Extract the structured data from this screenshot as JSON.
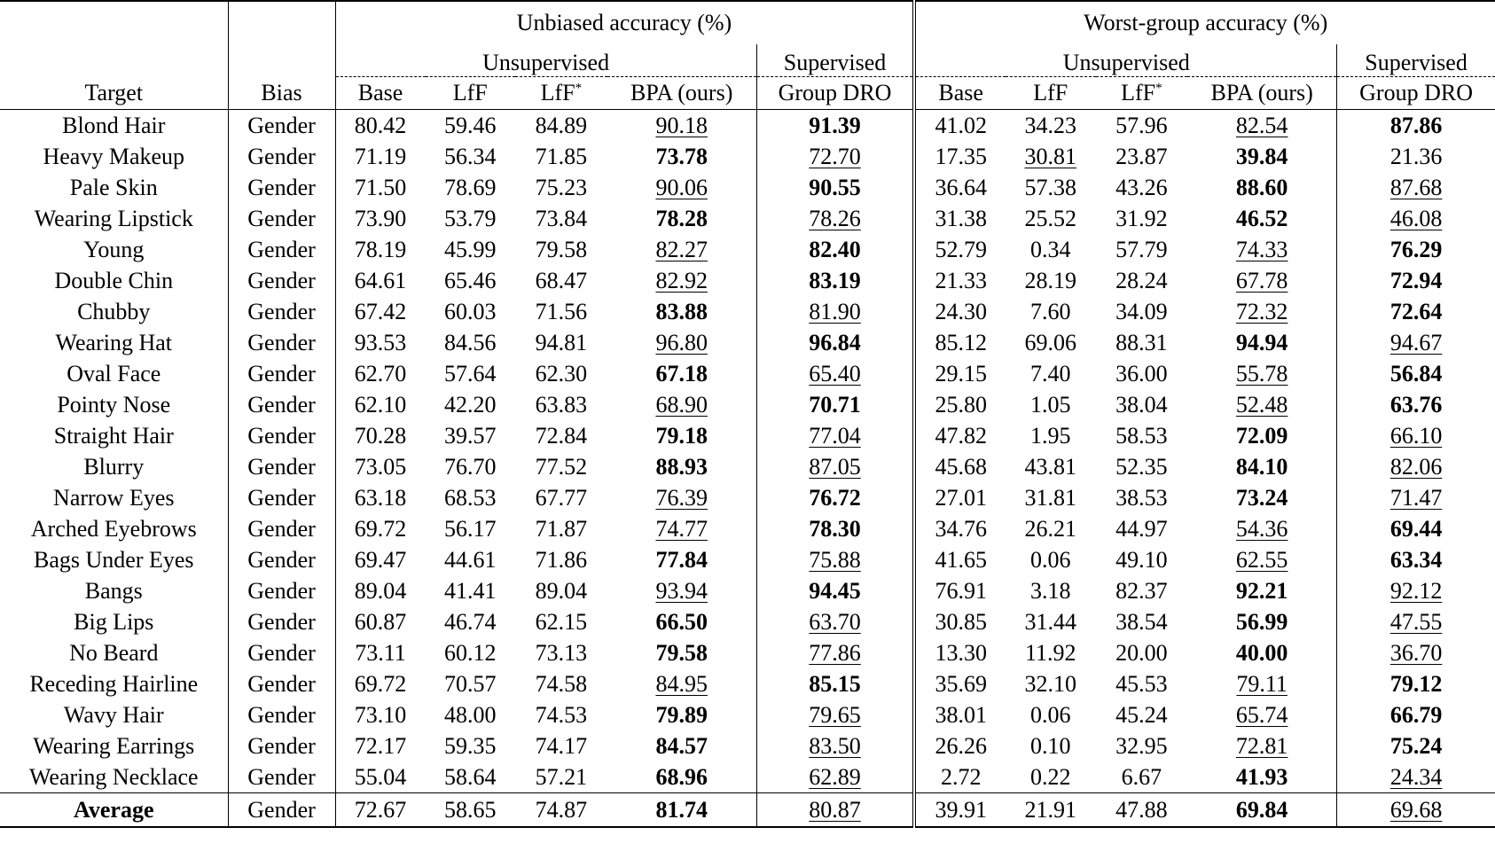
{
  "header": {
    "group_unbiased": "Unbiased accuracy (%)",
    "group_worst": "Worst-group accuracy (%)",
    "unsupervised": "Unsupervised",
    "supervised": "Supervised",
    "col_target": "Target",
    "col_bias": "Bias",
    "col_base": "Base",
    "col_lff": "LfF",
    "col_lffstar": "LfF*",
    "col_bpa": "BPA (ours)",
    "col_gdro": "Group DRO"
  },
  "rows": [
    {
      "target": "Blond Hair",
      "bias": "Gender",
      "v": [
        "80.42",
        "59.46",
        "84.89",
        "90.18",
        "91.39",
        "41.02",
        "34.23",
        "57.96",
        "82.54",
        "87.86"
      ],
      "fmt": [
        "",
        "",
        "",
        "u",
        "b",
        "",
        "",
        "",
        "u",
        "b"
      ]
    },
    {
      "target": "Heavy Makeup",
      "bias": "Gender",
      "v": [
        "71.19",
        "56.34",
        "71.85",
        "73.78",
        "72.70",
        "17.35",
        "30.81",
        "23.87",
        "39.84",
        "21.36"
      ],
      "fmt": [
        "",
        "",
        "",
        "b",
        "u",
        "",
        "u",
        "",
        "b",
        ""
      ]
    },
    {
      "target": "Pale Skin",
      "bias": "Gender",
      "v": [
        "71.50",
        "78.69",
        "75.23",
        "90.06",
        "90.55",
        "36.64",
        "57.38",
        "43.26",
        "88.60",
        "87.68"
      ],
      "fmt": [
        "",
        "",
        "",
        "u",
        "b",
        "",
        "",
        "",
        "b",
        "u"
      ]
    },
    {
      "target": "Wearing Lipstick",
      "bias": "Gender",
      "v": [
        "73.90",
        "53.79",
        "73.84",
        "78.28",
        "78.26",
        "31.38",
        "25.52",
        "31.92",
        "46.52",
        "46.08"
      ],
      "fmt": [
        "",
        "",
        "",
        "b",
        "u",
        "",
        "",
        "",
        "b",
        "u"
      ]
    },
    {
      "target": "Young",
      "bias": "Gender",
      "v": [
        "78.19",
        "45.99",
        "79.58",
        "82.27",
        "82.40",
        "52.79",
        "0.34",
        "57.79",
        "74.33",
        "76.29"
      ],
      "fmt": [
        "",
        "",
        "",
        "u",
        "b",
        "",
        "",
        "",
        "u",
        "b"
      ]
    },
    {
      "target": "Double Chin",
      "bias": "Gender",
      "v": [
        "64.61",
        "65.46",
        "68.47",
        "82.92",
        "83.19",
        "21.33",
        "28.19",
        "28.24",
        "67.78",
        "72.94"
      ],
      "fmt": [
        "",
        "",
        "",
        "u",
        "b",
        "",
        "",
        "",
        "u",
        "b"
      ]
    },
    {
      "target": "Chubby",
      "bias": "Gender",
      "v": [
        "67.42",
        "60.03",
        "71.56",
        "83.88",
        "81.90",
        "24.30",
        "7.60",
        "34.09",
        "72.32",
        "72.64"
      ],
      "fmt": [
        "",
        "",
        "",
        "b",
        "u",
        "",
        "",
        "",
        "u",
        "b"
      ]
    },
    {
      "target": "Wearing Hat",
      "bias": "Gender",
      "v": [
        "93.53",
        "84.56",
        "94.81",
        "96.80",
        "96.84",
        "85.12",
        "69.06",
        "88.31",
        "94.94",
        "94.67"
      ],
      "fmt": [
        "",
        "",
        "",
        "u",
        "b",
        "",
        "",
        "",
        "b",
        "u"
      ]
    },
    {
      "target": "Oval Face",
      "bias": "Gender",
      "v": [
        "62.70",
        "57.64",
        "62.30",
        "67.18",
        "65.40",
        "29.15",
        "7.40",
        "36.00",
        "55.78",
        "56.84"
      ],
      "fmt": [
        "",
        "",
        "",
        "b",
        "u",
        "",
        "",
        "",
        "u",
        "b"
      ]
    },
    {
      "target": "Pointy Nose",
      "bias": "Gender",
      "v": [
        "62.10",
        "42.20",
        "63.83",
        "68.90",
        "70.71",
        "25.80",
        "1.05",
        "38.04",
        "52.48",
        "63.76"
      ],
      "fmt": [
        "",
        "",
        "",
        "u",
        "b",
        "",
        "",
        "",
        "u",
        "b"
      ]
    },
    {
      "target": "Straight Hair",
      "bias": "Gender",
      "v": [
        "70.28",
        "39.57",
        "72.84",
        "79.18",
        "77.04",
        "47.82",
        "1.95",
        "58.53",
        "72.09",
        "66.10"
      ],
      "fmt": [
        "",
        "",
        "",
        "b",
        "u",
        "",
        "",
        "",
        "b",
        "u"
      ]
    },
    {
      "target": "Blurry",
      "bias": "Gender",
      "v": [
        "73.05",
        "76.70",
        "77.52",
        "88.93",
        "87.05",
        "45.68",
        "43.81",
        "52.35",
        "84.10",
        "82.06"
      ],
      "fmt": [
        "",
        "",
        "",
        "b",
        "u",
        "",
        "",
        "",
        "b",
        "u"
      ]
    },
    {
      "target": "Narrow Eyes",
      "bias": "Gender",
      "v": [
        "63.18",
        "68.53",
        "67.77",
        "76.39",
        "76.72",
        "27.01",
        "31.81",
        "38.53",
        "73.24",
        "71.47"
      ],
      "fmt": [
        "",
        "",
        "",
        "u",
        "b",
        "",
        "",
        "",
        "b",
        "u"
      ]
    },
    {
      "target": "Arched Eyebrows",
      "bias": "Gender",
      "v": [
        "69.72",
        "56.17",
        "71.87",
        "74.77",
        "78.30",
        "34.76",
        "26.21",
        "44.97",
        "54.36",
        "69.44"
      ],
      "fmt": [
        "",
        "",
        "",
        "u",
        "b",
        "",
        "",
        "",
        "u",
        "b"
      ]
    },
    {
      "target": "Bags Under Eyes",
      "bias": "Gender",
      "v": [
        "69.47",
        "44.61",
        "71.86",
        "77.84",
        "75.88",
        "41.65",
        "0.06",
        "49.10",
        "62.55",
        "63.34"
      ],
      "fmt": [
        "",
        "",
        "",
        "b",
        "u",
        "",
        "",
        "",
        "u",
        "b"
      ]
    },
    {
      "target": "Bangs",
      "bias": "Gender",
      "v": [
        "89.04",
        "41.41",
        "89.04",
        "93.94",
        "94.45",
        "76.91",
        "3.18",
        "82.37",
        "92.21",
        "92.12"
      ],
      "fmt": [
        "",
        "",
        "",
        "u",
        "b",
        "",
        "",
        "",
        "b",
        "u"
      ]
    },
    {
      "target": "Big Lips",
      "bias": "Gender",
      "v": [
        "60.87",
        "46.74",
        "62.15",
        "66.50",
        "63.70",
        "30.85",
        "31.44",
        "38.54",
        "56.99",
        "47.55"
      ],
      "fmt": [
        "",
        "",
        "",
        "b",
        "u",
        "",
        "",
        "",
        "b",
        "u"
      ]
    },
    {
      "target": "No Beard",
      "bias": "Gender",
      "v": [
        "73.11",
        "60.12",
        "73.13",
        "79.58",
        "77.86",
        "13.30",
        "11.92",
        "20.00",
        "40.00",
        "36.70"
      ],
      "fmt": [
        "",
        "",
        "",
        "b",
        "u",
        "",
        "",
        "",
        "b",
        "u"
      ]
    },
    {
      "target": "Receding Hairline",
      "bias": "Gender",
      "v": [
        "69.72",
        "70.57",
        "74.58",
        "84.95",
        "85.15",
        "35.69",
        "32.10",
        "45.53",
        "79.11",
        "79.12"
      ],
      "fmt": [
        "",
        "",
        "",
        "u",
        "b",
        "",
        "",
        "",
        "u",
        "b"
      ]
    },
    {
      "target": "Wavy Hair",
      "bias": "Gender",
      "v": [
        "73.10",
        "48.00",
        "74.53",
        "79.89",
        "79.65",
        "38.01",
        "0.06",
        "45.24",
        "65.74",
        "66.79"
      ],
      "fmt": [
        "",
        "",
        "",
        "b",
        "u",
        "",
        "",
        "",
        "u",
        "b"
      ]
    },
    {
      "target": "Wearing Earrings",
      "bias": "Gender",
      "v": [
        "72.17",
        "59.35",
        "74.17",
        "84.57",
        "83.50",
        "26.26",
        "0.10",
        "32.95",
        "72.81",
        "75.24"
      ],
      "fmt": [
        "",
        "",
        "",
        "b",
        "u",
        "",
        "",
        "",
        "u",
        "b"
      ]
    },
    {
      "target": "Wearing Necklace",
      "bias": "Gender",
      "v": [
        "55.04",
        "58.64",
        "57.21",
        "68.96",
        "62.89",
        "2.72",
        "0.22",
        "6.67",
        "41.93",
        "24.34"
      ],
      "fmt": [
        "",
        "",
        "",
        "b",
        "u",
        "",
        "",
        "",
        "b",
        "u"
      ]
    }
  ],
  "average": {
    "target": "Average",
    "bias": "Gender",
    "v": [
      "72.67",
      "58.65",
      "74.87",
      "81.74",
      "80.87",
      "39.91",
      "21.91",
      "47.88",
      "69.84",
      "69.68"
    ],
    "fmt": [
      "",
      "",
      "",
      "b",
      "u",
      "",
      "",
      "",
      "b",
      "u"
    ]
  }
}
